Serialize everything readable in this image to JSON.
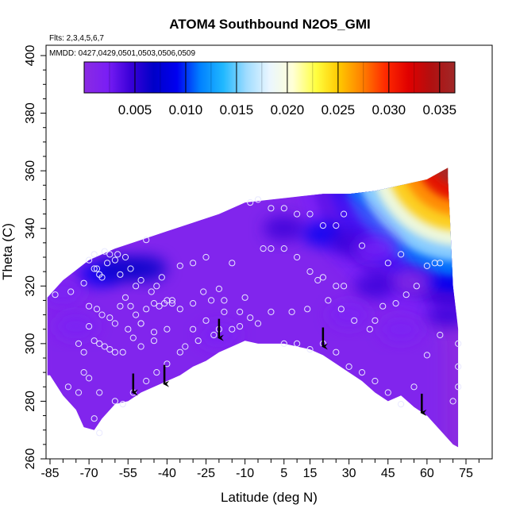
{
  "chart_data": {
    "type": "heatmap",
    "title": "ATOM4 Southbound N2O5_GMI",
    "subtitle_flights": "Flts: 2,3,4,5,6,7",
    "subtitle_dates": "MMDD: 0427,0429,0501,0503,0506,0509",
    "xlabel": "Latitude (deg N)",
    "ylabel": "Theta (C)",
    "xlim": [
      -88,
      82
    ],
    "ylim": [
      260,
      405
    ],
    "x_ticks": [
      -85,
      -70,
      -55,
      -40,
      -25,
      -10,
      5,
      15,
      30,
      45,
      60,
      75
    ],
    "x_tick_labels": [
      "-85",
      "-70",
      "-55",
      "-40",
      "-25",
      "-10",
      "5",
      "15",
      "30",
      "45",
      "60",
      "75"
    ],
    "y_ticks": [
      260,
      280,
      300,
      320,
      340,
      360,
      380,
      400
    ],
    "y_tick_labels": [
      "260",
      "280",
      "300",
      "320",
      "340",
      "360",
      "380",
      "400"
    ],
    "colorbar": {
      "range": [
        0.0,
        0.0365
      ],
      "ticks": [
        0.005,
        0.01,
        0.015,
        0.02,
        0.025,
        0.03,
        0.035
      ],
      "tick_labels": [
        "0.005",
        "0.010",
        "0.015",
        "0.020",
        "0.025",
        "0.030",
        "0.035"
      ],
      "colors": [
        "#8a2be2",
        "#7a1ef5",
        "#3a00d8",
        "#0000c8",
        "#0000f0",
        "#0080ff",
        "#20b8ff",
        "#9fdcff",
        "#eaf6ff",
        "#ffffd6",
        "#ffff40",
        "#ffc800",
        "#ff8000",
        "#ff2a00",
        "#e00000",
        "#b01010",
        "#a02828"
      ]
    },
    "legend": "top, horizontal colorbar",
    "grid": false,
    "lower_boundary": [
      [
        -85,
        289
      ],
      [
        -80,
        282
      ],
      [
        -75,
        277
      ],
      [
        -72,
        271
      ],
      [
        -68,
        270
      ],
      [
        -65,
        274
      ],
      [
        -60,
        279
      ],
      [
        -55,
        280
      ],
      [
        -50,
        283
      ],
      [
        -45,
        285
      ],
      [
        -40,
        287
      ],
      [
        -35,
        289
      ],
      [
        -30,
        292
      ],
      [
        -25,
        294
      ],
      [
        -20,
        297
      ],
      [
        -15,
        299
      ],
      [
        -10,
        301
      ],
      [
        -5,
        300
      ],
      [
        0,
        300
      ],
      [
        5,
        300
      ],
      [
        10,
        299
      ],
      [
        15,
        298
      ],
      [
        20,
        296
      ],
      [
        25,
        293
      ],
      [
        30,
        290
      ],
      [
        35,
        287
      ],
      [
        40,
        283
      ],
      [
        45,
        280
      ],
      [
        50,
        282
      ],
      [
        55,
        278
      ],
      [
        60,
        275
      ],
      [
        65,
        270
      ],
      [
        70,
        265
      ],
      [
        72,
        264
      ]
    ],
    "upper_boundary": [
      [
        72,
        264
      ],
      [
        72,
        305
      ],
      [
        70,
        320
      ],
      [
        69,
        340
      ],
      [
        68,
        358
      ],
      [
        68,
        361
      ],
      [
        60,
        357
      ],
      [
        50,
        355
      ],
      [
        40,
        353
      ],
      [
        30,
        352
      ],
      [
        20,
        352
      ],
      [
        10,
        351
      ],
      [
        0,
        350
      ],
      [
        -10,
        349
      ],
      [
        -20,
        345
      ],
      [
        -30,
        342
      ],
      [
        -40,
        339
      ],
      [
        -50,
        336
      ],
      [
        -60,
        333
      ],
      [
        -70,
        329
      ],
      [
        -80,
        322
      ],
      [
        -86,
        316
      ],
      [
        -86,
        289
      ]
    ],
    "anomalies": [
      {
        "lat": -66,
        "theta": 324,
        "value": 0.009
      },
      {
        "lat": -58,
        "theta": 326,
        "value": 0.007
      },
      {
        "lat": -48,
        "theta": 326,
        "value": 0.006
      },
      {
        "lat": -80,
        "theta": 318,
        "value": 0.003
      },
      {
        "lat": -75,
        "theta": 306,
        "value": 0.002
      },
      {
        "lat": 5,
        "theta": 340,
        "value": 0.004
      },
      {
        "lat": 20,
        "theta": 338,
        "value": 0.008
      },
      {
        "lat": 30,
        "theta": 335,
        "value": 0.005
      },
      {
        "lat": 40,
        "theta": 333,
        "value": 0.002
      },
      {
        "lat": 40,
        "theta": 320,
        "value": 0.004
      },
      {
        "lat": 55,
        "theta": 322,
        "value": 0.001
      },
      {
        "lat": 50,
        "theta": 305,
        "value": 0.003
      },
      {
        "lat": -20,
        "theta": 303,
        "value": 0.002
      },
      {
        "lat": 68,
        "theta": 310,
        "value": 0.004
      },
      {
        "lat": 30,
        "theta": 310,
        "value": 0.002
      }
    ],
    "high_region": {
      "lat_min": 30,
      "lat_max": 70,
      "note": "concentration increases toward upper-right edge"
    },
    "flight_track_points": [
      [
        -83,
        317
      ],
      [
        -77,
        318
      ],
      [
        -72,
        321
      ],
      [
        -68,
        331
      ],
      [
        -67,
        326
      ],
      [
        -66,
        324
      ],
      [
        -65,
        323
      ],
      [
        -63,
        328
      ],
      [
        -60,
        329
      ],
      [
        -58,
        324
      ],
      [
        -56,
        330
      ],
      [
        -54,
        326
      ],
      [
        -52,
        320
      ],
      [
        -50,
        322
      ],
      [
        -48,
        336
      ],
      [
        -46,
        318
      ],
      [
        -44,
        320
      ],
      [
        -42,
        323
      ],
      [
        -40,
        315
      ],
      [
        -38,
        315
      ],
      [
        -35,
        327
      ],
      [
        -30,
        328
      ],
      [
        -25,
        330
      ],
      [
        -20,
        319
      ],
      [
        -18,
        315
      ],
      [
        -15,
        328
      ],
      [
        -10,
        316
      ],
      [
        -8,
        349
      ],
      [
        -5,
        350
      ],
      [
        0,
        347
      ],
      [
        5,
        347
      ],
      [
        10,
        345
      ],
      [
        15,
        345
      ],
      [
        20,
        341
      ],
      [
        25,
        341
      ],
      [
        28,
        345
      ],
      [
        -3,
        333
      ],
      [
        0,
        333
      ],
      [
        5,
        333
      ],
      [
        10,
        330
      ],
      [
        15,
        325
      ],
      [
        18,
        322
      ],
      [
        20,
        323
      ],
      [
        25,
        320
      ],
      [
        28,
        320
      ],
      [
        -70,
        313
      ],
      [
        -67,
        312
      ],
      [
        -65,
        310
      ],
      [
        -62,
        309
      ],
      [
        -60,
        307
      ],
      [
        -55,
        305
      ],
      [
        -50,
        307
      ],
      [
        -45,
        304
      ],
      [
        -70,
        306
      ],
      [
        -68,
        301
      ],
      [
        -66,
        300
      ],
      [
        -64,
        299
      ],
      [
        -62,
        298
      ],
      [
        -60,
        297
      ],
      [
        -57,
        297
      ],
      [
        -53,
        302
      ],
      [
        -50,
        299
      ],
      [
        -45,
        301
      ],
      [
        -40,
        305
      ],
      [
        -30,
        305
      ],
      [
        -25,
        308
      ],
      [
        -20,
        305
      ],
      [
        -15,
        305
      ],
      [
        -12,
        311
      ],
      [
        -5,
        307
      ],
      [
        5,
        300
      ],
      [
        10,
        300
      ],
      [
        15,
        298
      ],
      [
        20,
        300
      ],
      [
        25,
        297
      ],
      [
        30,
        292
      ],
      [
        35,
        290
      ],
      [
        40,
        287
      ],
      [
        45,
        283
      ],
      [
        50,
        279
      ],
      [
        55,
        285
      ],
      [
        60,
        296
      ],
      [
        65,
        303
      ],
      [
        40,
        308
      ],
      [
        43,
        313
      ],
      [
        48,
        314
      ],
      [
        52,
        317
      ],
      [
        56,
        320
      ],
      [
        60,
        327
      ],
      [
        63,
        328
      ],
      [
        65,
        328
      ],
      [
        45,
        328
      ],
      [
        50,
        331
      ],
      [
        35,
        334
      ],
      [
        -72,
        290
      ],
      [
        -70,
        288
      ],
      [
        -66,
        283
      ],
      [
        -60,
        280
      ],
      [
        -57,
        279
      ],
      [
        -53,
        283
      ],
      [
        -48,
        287
      ],
      [
        -44,
        290
      ],
      [
        -40,
        293
      ],
      [
        -35,
        297
      ],
      [
        -33,
        299
      ],
      [
        -28,
        301
      ],
      [
        -22,
        303
      ],
      [
        -78,
        285
      ],
      [
        -74,
        283
      ],
      [
        -68,
        274
      ],
      [
        -66,
        269
      ],
      [
        70,
        280
      ],
      [
        72,
        285
      ],
      [
        72,
        292
      ],
      [
        72,
        300
      ],
      [
        -74,
        300
      ],
      [
        -72,
        297
      ],
      [
        -58,
        313
      ],
      [
        -56,
        316
      ],
      [
        -54,
        313
      ],
      [
        -52,
        310
      ],
      [
        -50,
        307
      ],
      [
        -48,
        312
      ],
      [
        -45,
        314
      ],
      [
        -43,
        313
      ],
      [
        -41,
        314
      ],
      [
        -38,
        314
      ],
      [
        -35,
        312
      ],
      [
        -30,
        314
      ],
      [
        -26,
        318
      ],
      [
        -23,
        315
      ],
      [
        -18,
        311
      ],
      [
        -12,
        306
      ],
      [
        -8,
        309
      ],
      [
        0,
        311
      ],
      [
        8,
        311
      ],
      [
        14,
        312
      ],
      [
        22,
        315
      ],
      [
        27,
        312
      ],
      [
        32,
        308
      ],
      [
        38,
        305
      ],
      [
        -70,
        329
      ],
      [
        -68,
        326
      ],
      [
        -64,
        332
      ],
      [
        -62,
        331
      ],
      [
        -59,
        331
      ]
    ],
    "arrows": [
      [
        -53,
        283
      ],
      [
        -41,
        286
      ],
      [
        -20,
        302
      ],
      [
        20,
        299
      ],
      [
        58,
        276
      ]
    ]
  }
}
